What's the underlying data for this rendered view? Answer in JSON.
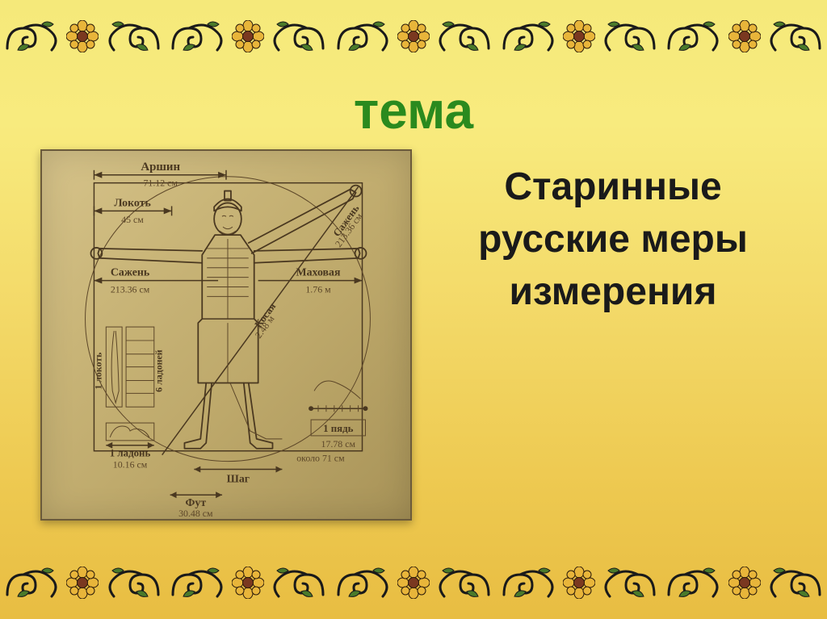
{
  "title": {
    "text": "тема",
    "color": "#2a8a1e",
    "fontsize": 64
  },
  "subtitle": {
    "text": "Старинные русские меры измерения",
    "color": "#1a1a1a",
    "fontsize": 48
  },
  "border": {
    "flower_center": "#7a3820",
    "flower_petal": "#e8b53a",
    "flower_outline": "#2a1a0a",
    "leaf_color": "#4a7a2a",
    "swirl_color": "#1a1a1a"
  },
  "diagram": {
    "background_from": "#d6c38a",
    "background_to": "#a89358",
    "stroke": "#4a3820",
    "measures": {
      "arshin": {
        "label": "Аршин",
        "value": "71.12 см"
      },
      "lokot": {
        "label": "Локоть",
        "value": "45 см"
      },
      "sazhen": {
        "label": "Сажень",
        "value": "213.36 см"
      },
      "makhovaya": {
        "label": "Маховая",
        "value": "1.76 м"
      },
      "kosaya": {
        "label": "Косая",
        "value": "2.48 м"
      },
      "sazhen_diag": {
        "label": "Сажень",
        "value": "213.36 см"
      },
      "one_lokot": {
        "label": "1 локоть"
      },
      "six_ladoney": {
        "label": "6 ладоней"
      },
      "one_ladon": {
        "label": "1 ладонь",
        "value": "10.16 см"
      },
      "shag": {
        "label": "Шаг",
        "note": "около 71 см"
      },
      "fut": {
        "label": "Фут",
        "value": "30.48 см"
      },
      "pyad": {
        "label": "1 пядь",
        "value": "17.78 см"
      }
    }
  }
}
